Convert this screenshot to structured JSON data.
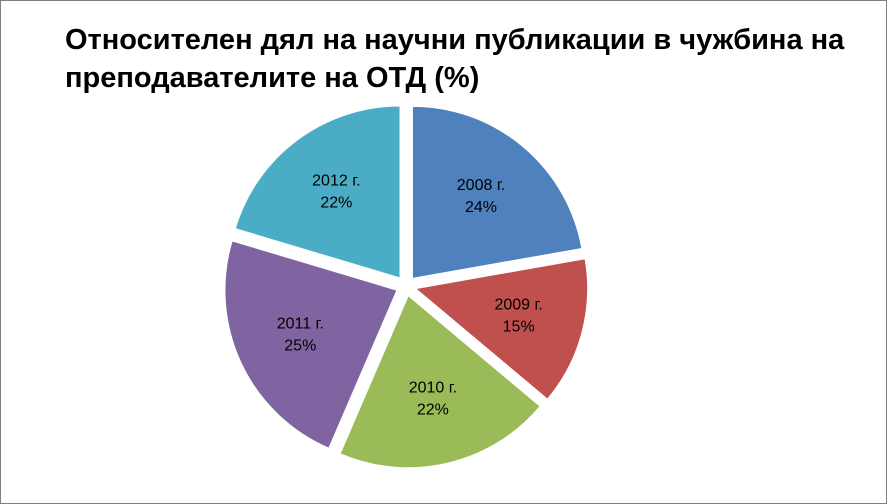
{
  "chart_data": {
    "type": "pie",
    "title": "Относителен дял на научни публикации в чужбина на преподавателите на ОТД (%)",
    "categories": [
      "2008 г.",
      "2009 г.",
      "2010 г.",
      "2011 г.",
      "2012 г."
    ],
    "values": [
      24,
      15,
      22,
      25,
      22
    ],
    "value_labels": [
      "24%",
      "15%",
      "22%",
      "25%",
      "22%"
    ],
    "colors": [
      "#4f81bd",
      "#c0504d",
      "#9bbb59",
      "#8064a2",
      "#4bacc6"
    ]
  }
}
